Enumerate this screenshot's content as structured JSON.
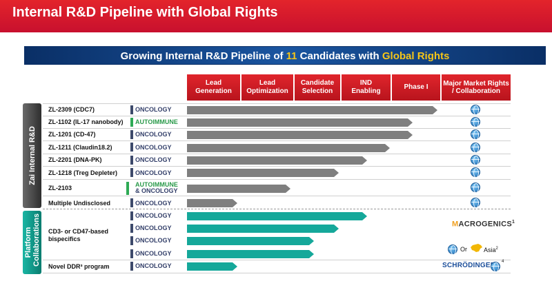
{
  "header": {
    "title": "Internal R&D Pipeline with Global Rights"
  },
  "banner": {
    "prefix": "Growing Internal R&D Pipeline of ",
    "count": "11",
    "middle": " Candidates with ",
    "highlight": "Global Rights"
  },
  "phases": [
    "Lead Generation",
    "Lead Optimization",
    "Candidate Selection",
    "IND Enabling",
    "Phase I"
  ],
  "rights_header": "Major Market Rights / Collaboration",
  "sections": {
    "internal": "Zai Internal R&D",
    "platform": "Platform Collaborations"
  },
  "internal_rows": [
    {
      "name": "ZL-2309 (CDC7)",
      "area": "ONCOLOGY",
      "progress": 0.99
    },
    {
      "name": "ZL-1102 (IL-17 nanobody)",
      "area": "AUTOIMMUNE",
      "progress": 0.89
    },
    {
      "name": "ZL-1201 (CD-47)",
      "area": "ONCOLOGY",
      "progress": 0.89
    },
    {
      "name": "ZL-1211 (Claudin18.2)",
      "area": "ONCOLOGY",
      "progress": 0.8
    },
    {
      "name": "ZL-2201 (DNA-PK)",
      "area": "ONCOLOGY",
      "progress": 0.71
    },
    {
      "name": "ZL-1218 (Treg Depleter)",
      "area": "ONCOLOGY",
      "progress": 0.6
    },
    {
      "name": "ZL-2103",
      "area_line1": "AUTOIMMUNE",
      "area_line2": "& ONCOLOGY",
      "progress": 0.41
    },
    {
      "name": "Multiple Undisclosed",
      "area": "ONCOLOGY",
      "progress": 0.2
    }
  ],
  "platform_rows": [
    {
      "area": "ONCOLOGY",
      "progress": 0.71
    },
    {
      "area": "ONCOLOGY",
      "progress": 0.6
    },
    {
      "area": "ONCOLOGY",
      "progress": 0.5
    },
    {
      "area": "ONCOLOGY",
      "progress": 0.5
    },
    {
      "area": "ONCOLOGY",
      "progress": 0.2
    }
  ],
  "platform_names": {
    "bispecifics": "CD3- or CD47-based bispecifics",
    "ddr": "Novel DDR³ program"
  },
  "partners": {
    "macrogenics": "ACROGENICS",
    "macrogenics_m": "M",
    "macrogenics_sup": "1",
    "or": "Or",
    "asia": "Asia",
    "asia_sup": "2",
    "schrodinger": "SCHRÖDINGER.",
    "schrodinger_sup": "4"
  },
  "colors": {
    "header_red": "#c8102e",
    "banner_blue": "#0a2f66",
    "highlight_yellow": "#f5c518",
    "bar_gray": "#7f7f7f",
    "bar_teal": "#15a89a",
    "autoimmune_green": "#2a9a4a"
  },
  "icons": {
    "rights": "globe-icon",
    "asia": "china-map-icon"
  }
}
